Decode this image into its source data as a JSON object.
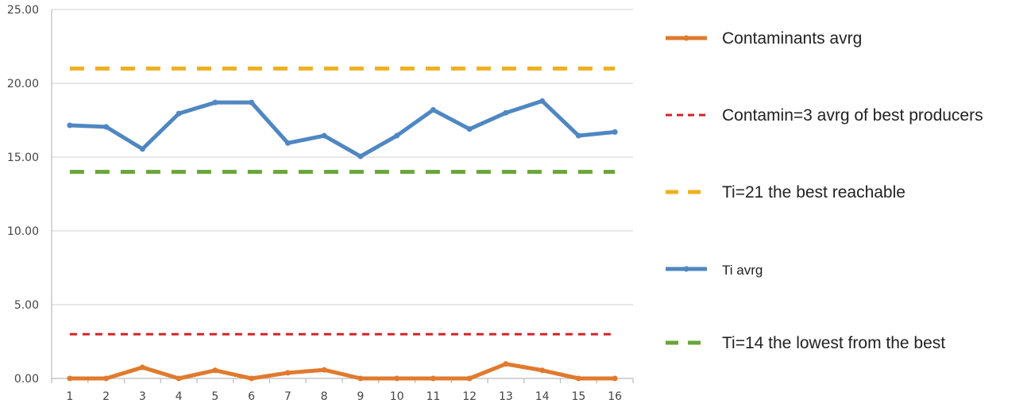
{
  "chart_data": {
    "type": "line",
    "x": [
      1,
      2,
      3,
      4,
      5,
      6,
      7,
      8,
      9,
      10,
      11,
      12,
      13,
      14,
      15,
      16
    ],
    "ylim": [
      0,
      25
    ],
    "yticks": [
      "0.00",
      "5.00",
      "10.00",
      "15.00",
      "20.00",
      "25.00"
    ],
    "grid": "horizontal",
    "legend_position": "right",
    "series": [
      {
        "name": "Contaminants avrg",
        "style": "solid-markers",
        "color": "#E07A2E",
        "values": [
          0,
          0,
          0.75,
          0,
          0.55,
          0,
          0.38,
          0.58,
          0,
          0,
          0,
          0,
          0.98,
          0.55,
          0,
          0
        ]
      },
      {
        "name": "Contamin=3 avrg of best producers",
        "style": "dashed",
        "color": "#D2232A",
        "values": [
          3,
          3,
          3,
          3,
          3,
          3,
          3,
          3,
          3,
          3,
          3,
          3,
          3,
          3,
          3,
          3
        ]
      },
      {
        "name": "Ti=21 the best reachable",
        "style": "dashed",
        "color": "#EDB020",
        "values": [
          21,
          21,
          21,
          21,
          21,
          21,
          21,
          21,
          21,
          21,
          21,
          21,
          21,
          21,
          21,
          21
        ]
      },
      {
        "name": "Ti avrg",
        "style": "solid-markers",
        "color": "#4F87C2",
        "values": [
          17.15,
          17.05,
          15.55,
          17.95,
          18.7,
          18.7,
          15.95,
          16.45,
          15.05,
          16.45,
          18.2,
          16.9,
          18.0,
          18.8,
          16.45,
          16.7
        ]
      },
      {
        "name": "Ti=14 the lowest from the best",
        "style": "dashed",
        "color": "#6AA53A",
        "values": [
          14,
          14,
          14,
          14,
          14,
          14,
          14,
          14,
          14,
          14,
          14,
          14,
          14,
          14,
          14,
          14
        ]
      }
    ]
  }
}
